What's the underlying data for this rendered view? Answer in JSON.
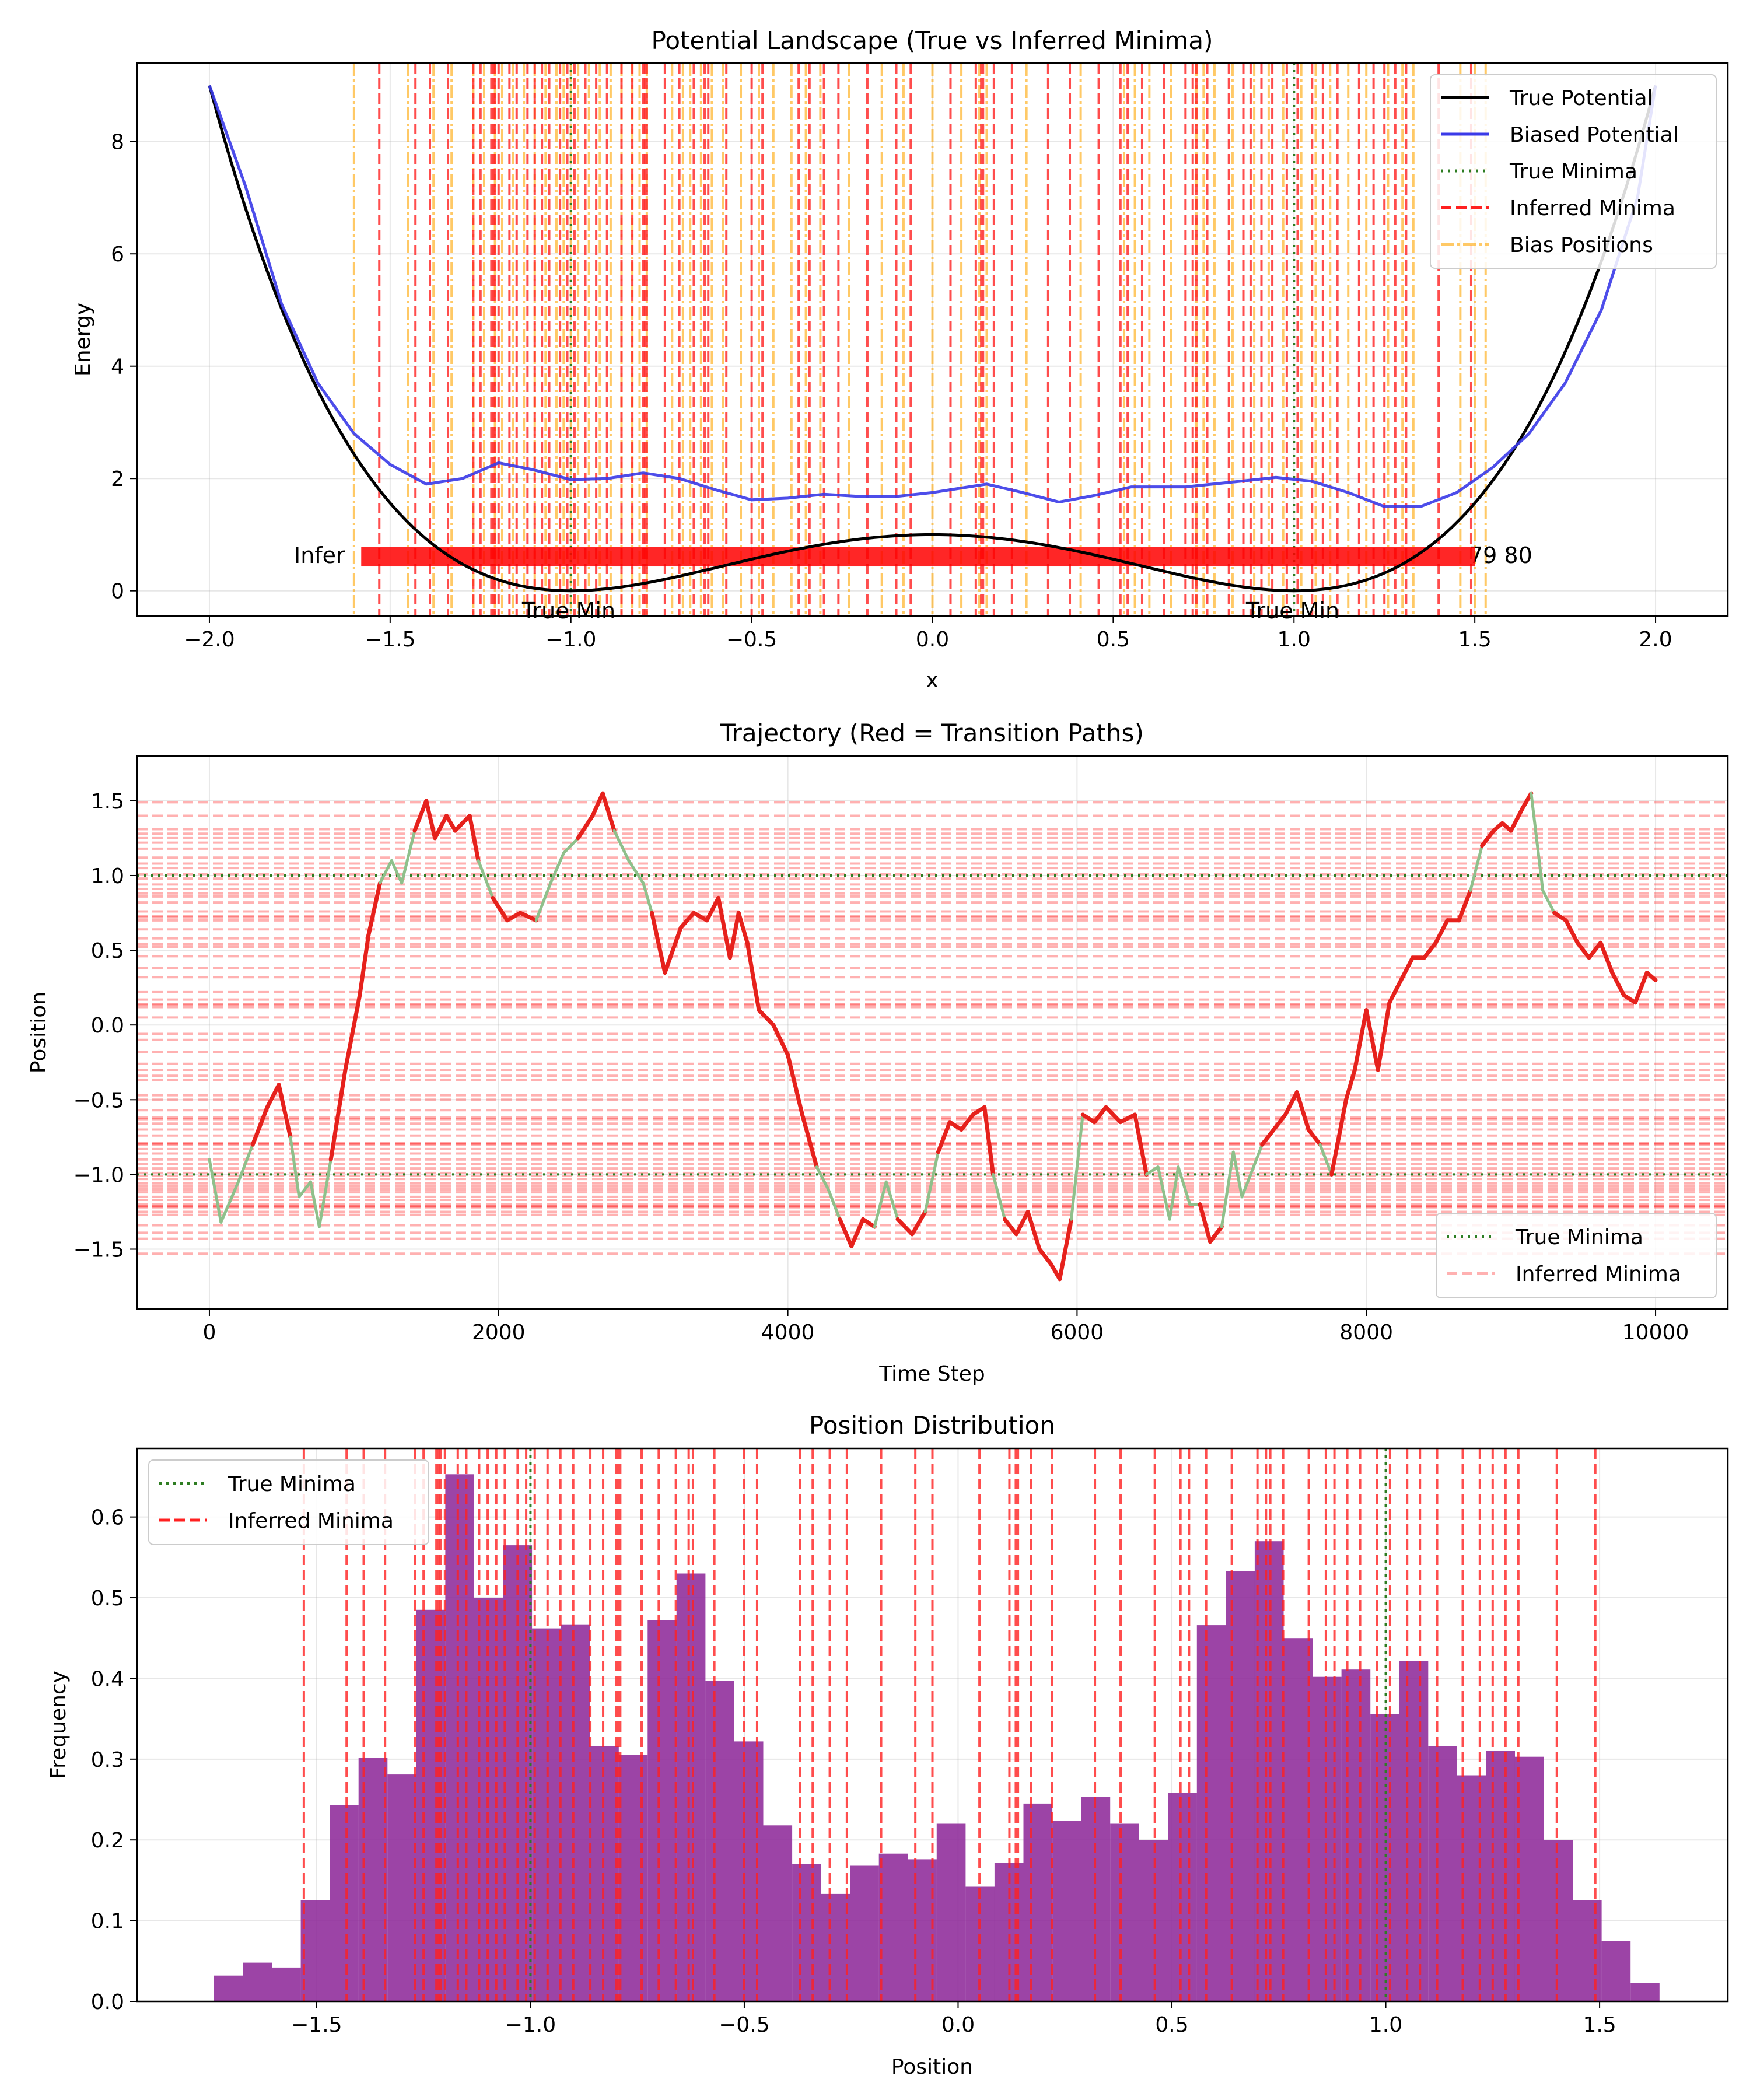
{
  "colors": {
    "true_potential": "#000000",
    "biased_potential": "#3a3ae8",
    "true_minima": "#2e7d22",
    "inferred_minima": "#ff2020",
    "bias_positions": "#ffa500",
    "transition": "#e6211c",
    "stable": "#8fc08b",
    "histogram": "#8e2a9a",
    "annotation_red": "#ff0000",
    "annotation_green": "#1a8a1a"
  },
  "chart_data": [
    {
      "type": "line",
      "title": "Potential Landscape (True vs Inferred Minima)",
      "xlabel": "x",
      "ylabel": "Energy",
      "xlim": [
        -2.2,
        2.2
      ],
      "ylim": [
        -0.45,
        9.4
      ],
      "xticks": [
        "−2.0",
        "−1.5",
        "−1.0",
        "−0.5",
        "0.0",
        "0.5",
        "1.0",
        "1.5",
        "2.0"
      ],
      "xtick_values": [
        -2.0,
        -1.5,
        -1.0,
        -0.5,
        0.0,
        0.5,
        1.0,
        1.5,
        2.0
      ],
      "yticks": [
        "0",
        "2",
        "4",
        "6",
        "8"
      ],
      "ytick_values": [
        0,
        2,
        4,
        6,
        8
      ],
      "grid": true,
      "legend_position": "top-right",
      "legend": [
        "True Potential",
        "Biased Potential",
        "True Minima",
        "Inferred Minima",
        "Bias Positions"
      ],
      "true_potential_formula": "(x^2 - 1)^2 for x in [-2, 2]",
      "biased_potential_points": [
        [
          -2.0,
          9.0
        ],
        [
          -1.9,
          7.2
        ],
        [
          -1.8,
          5.1
        ],
        [
          -1.7,
          3.7
        ],
        [
          -1.6,
          2.8
        ],
        [
          -1.5,
          2.25
        ],
        [
          -1.4,
          1.9
        ],
        [
          -1.3,
          2.0
        ],
        [
          -1.2,
          2.28
        ],
        [
          -1.1,
          2.15
        ],
        [
          -1.0,
          1.98
        ],
        [
          -0.9,
          2.0
        ],
        [
          -0.8,
          2.1
        ],
        [
          -0.7,
          2.0
        ],
        [
          -0.6,
          1.8
        ],
        [
          -0.5,
          1.62
        ],
        [
          -0.4,
          1.65
        ],
        [
          -0.3,
          1.72
        ],
        [
          -0.2,
          1.68
        ],
        [
          -0.1,
          1.68
        ],
        [
          0.0,
          1.75
        ],
        [
          0.1,
          1.85
        ],
        [
          0.15,
          1.9
        ],
        [
          0.25,
          1.75
        ],
        [
          0.35,
          1.58
        ],
        [
          0.45,
          1.7
        ],
        [
          0.55,
          1.85
        ],
        [
          0.7,
          1.85
        ],
        [
          0.85,
          1.95
        ],
        [
          0.95,
          2.02
        ],
        [
          1.05,
          1.95
        ],
        [
          1.15,
          1.75
        ],
        [
          1.25,
          1.5
        ],
        [
          1.35,
          1.5
        ],
        [
          1.45,
          1.75
        ],
        [
          1.55,
          2.2
        ],
        [
          1.65,
          2.8
        ],
        [
          1.75,
          3.7
        ],
        [
          1.85,
          5.0
        ],
        [
          1.95,
          7.0
        ],
        [
          2.0,
          9.0
        ]
      ],
      "true_minima": [
        -1.0,
        1.0
      ],
      "annotations": {
        "true_min_label": "True Min",
        "inferred_label_start": "Infer",
        "inferred_label_end": "79 80"
      }
    },
    {
      "type": "line",
      "title": "Trajectory (Red = Transition Paths)",
      "xlabel": "Time Step",
      "ylabel": "Position",
      "xlim": [
        -500,
        10500
      ],
      "ylim": [
        -1.9,
        1.8
      ],
      "xticks": [
        "0",
        "2000",
        "4000",
        "6000",
        "8000",
        "10000"
      ],
      "xtick_values": [
        0,
        2000,
        4000,
        6000,
        8000,
        10000
      ],
      "yticks": [
        "−1.5",
        "−1.0",
        "−0.5",
        "0.0",
        "0.5",
        "1.0",
        "1.5"
      ],
      "ytick_values": [
        -1.5,
        -1.0,
        -0.5,
        0.0,
        0.5,
        1.0,
        1.5
      ],
      "grid": true,
      "legend_position": "bottom-right",
      "legend": [
        "True Minima",
        "Inferred Minima"
      ],
      "trajectory_keypoints": [
        [
          0,
          -0.9
        ],
        [
          80,
          -1.32
        ],
        [
          200,
          -1.05
        ],
        [
          300,
          -0.8
        ],
        [
          400,
          -0.55
        ],
        [
          480,
          -0.4
        ],
        [
          560,
          -0.75
        ],
        [
          620,
          -1.15
        ],
        [
          700,
          -1.05
        ],
        [
          760,
          -1.35
        ],
        [
          840,
          -0.9
        ],
        [
          940,
          -0.3
        ],
        [
          1040,
          0.2
        ],
        [
          1100,
          0.6
        ],
        [
          1180,
          0.95
        ],
        [
          1260,
          1.1
        ],
        [
          1330,
          0.95
        ],
        [
          1420,
          1.3
        ],
        [
          1500,
          1.5
        ],
        [
          1560,
          1.25
        ],
        [
          1640,
          1.4
        ],
        [
          1700,
          1.3
        ],
        [
          1800,
          1.4
        ],
        [
          1860,
          1.1
        ],
        [
          1960,
          0.85
        ],
        [
          2060,
          0.7
        ],
        [
          2150,
          0.75
        ],
        [
          2260,
          0.7
        ],
        [
          2360,
          0.95
        ],
        [
          2450,
          1.15
        ],
        [
          2550,
          1.25
        ],
        [
          2650,
          1.4
        ],
        [
          2720,
          1.55
        ],
        [
          2800,
          1.3
        ],
        [
          2900,
          1.1
        ],
        [
          3000,
          0.95
        ],
        [
          3060,
          0.75
        ],
        [
          3150,
          0.35
        ],
        [
          3260,
          0.65
        ],
        [
          3350,
          0.75
        ],
        [
          3440,
          0.7
        ],
        [
          3520,
          0.85
        ],
        [
          3600,
          0.45
        ],
        [
          3660,
          0.75
        ],
        [
          3720,
          0.55
        ],
        [
          3800,
          0.1
        ],
        [
          3900,
          0.0
        ],
        [
          4000,
          -0.2
        ],
        [
          4100,
          -0.6
        ],
        [
          4200,
          -0.95
        ],
        [
          4280,
          -1.1
        ],
        [
          4360,
          -1.3
        ],
        [
          4440,
          -1.48
        ],
        [
          4520,
          -1.3
        ],
        [
          4600,
          -1.35
        ],
        [
          4680,
          -1.05
        ],
        [
          4760,
          -1.3
        ],
        [
          4860,
          -1.4
        ],
        [
          4950,
          -1.25
        ],
        [
          5040,
          -0.85
        ],
        [
          5120,
          -0.65
        ],
        [
          5200,
          -0.7
        ],
        [
          5280,
          -0.6
        ],
        [
          5360,
          -0.55
        ],
        [
          5420,
          -1.0
        ],
        [
          5500,
          -1.3
        ],
        [
          5580,
          -1.4
        ],
        [
          5660,
          -1.25
        ],
        [
          5740,
          -1.5
        ],
        [
          5820,
          -1.6
        ],
        [
          5880,
          -1.7
        ],
        [
          5960,
          -1.3
        ],
        [
          6040,
          -0.6
        ],
        [
          6120,
          -0.65
        ],
        [
          6200,
          -0.55
        ],
        [
          6300,
          -0.65
        ],
        [
          6400,
          -0.6
        ],
        [
          6480,
          -1.0
        ],
        [
          6560,
          -0.95
        ],
        [
          6640,
          -1.3
        ],
        [
          6700,
          -0.95
        ],
        [
          6780,
          -1.2
        ],
        [
          6850,
          -1.2
        ],
        [
          6920,
          -1.45
        ],
        [
          7000,
          -1.35
        ],
        [
          7080,
          -0.85
        ],
        [
          7140,
          -1.15
        ],
        [
          7200,
          -1.0
        ],
        [
          7280,
          -0.8
        ],
        [
          7360,
          -0.7
        ],
        [
          7440,
          -0.6
        ],
        [
          7520,
          -0.45
        ],
        [
          7600,
          -0.7
        ],
        [
          7680,
          -0.8
        ],
        [
          7760,
          -1.0
        ],
        [
          7860,
          -0.5
        ],
        [
          7920,
          -0.3
        ],
        [
          8000,
          0.1
        ],
        [
          8080,
          -0.3
        ],
        [
          8160,
          0.15
        ],
        [
          8240,
          0.3
        ],
        [
          8320,
          0.45
        ],
        [
          8400,
          0.45
        ],
        [
          8480,
          0.55
        ],
        [
          8560,
          0.7
        ],
        [
          8640,
          0.7
        ],
        [
          8720,
          0.9
        ],
        [
          8800,
          1.2
        ],
        [
          8880,
          1.3
        ],
        [
          8940,
          1.35
        ],
        [
          9000,
          1.3
        ],
        [
          9080,
          1.45
        ],
        [
          9140,
          1.55
        ],
        [
          9220,
          0.9
        ],
        [
          9300,
          0.75
        ],
        [
          9380,
          0.7
        ],
        [
          9460,
          0.55
        ],
        [
          9540,
          0.45
        ],
        [
          9620,
          0.55
        ],
        [
          9700,
          0.35
        ],
        [
          9780,
          0.2
        ],
        [
          9860,
          0.15
        ],
        [
          9940,
          0.35
        ],
        [
          10000,
          0.3
        ]
      ],
      "true_minima": [
        -1.0,
        1.0
      ]
    },
    {
      "type": "bar",
      "title": "Position Distribution",
      "xlabel": "Position",
      "ylabel": "Frequency",
      "xlim": [
        -1.92,
        1.8
      ],
      "ylim": [
        0,
        0.685
      ],
      "xticks": [
        "−1.5",
        "−1.0",
        "−0.5",
        "0.0",
        "0.5",
        "1.0",
        "1.5"
      ],
      "xtick_values": [
        -1.5,
        -1.0,
        -0.5,
        0.0,
        0.5,
        1.0,
        1.5
      ],
      "yticks": [
        "0.0",
        "0.1",
        "0.2",
        "0.3",
        "0.4",
        "0.5",
        "0.6"
      ],
      "ytick_values": [
        0.0,
        0.1,
        0.2,
        0.3,
        0.4,
        0.5,
        0.6
      ],
      "grid": true,
      "legend_position": "top-left",
      "legend": [
        "True Minima",
        "Inferred Minima"
      ],
      "bin_start": -1.74,
      "bin_width": 0.0676,
      "values": [
        0.032,
        0.048,
        0.042,
        0.125,
        0.243,
        0.302,
        0.281,
        0.485,
        0.653,
        0.5,
        0.565,
        0.462,
        0.467,
        0.316,
        0.305,
        0.472,
        0.53,
        0.397,
        0.322,
        0.218,
        0.17,
        0.133,
        0.168,
        0.183,
        0.176,
        0.22,
        0.142,
        0.172,
        0.245,
        0.224,
        0.253,
        0.22,
        0.2,
        0.258,
        0.466,
        0.533,
        0.57,
        0.45,
        0.402,
        0.411,
        0.356,
        0.422,
        0.316,
        0.28,
        0.31,
        0.303,
        0.2,
        0.125,
        0.075,
        0.023
      ],
      "true_minima": [
        -1.0,
        1.0
      ]
    }
  ],
  "inferred_minima": [
    -1.53,
    -1.43,
    -1.39,
    -1.34,
    -1.27,
    -1.25,
    -1.22,
    -1.215,
    -1.21,
    -1.2,
    -1.17,
    -1.15,
    -1.12,
    -1.1,
    -1.08,
    -1.06,
    -1.03,
    -1.01,
    -0.99,
    -0.96,
    -0.93,
    -0.9,
    -0.86,
    -0.83,
    -0.8,
    -0.795,
    -0.79,
    -0.74,
    -0.7,
    -0.66,
    -0.63,
    -0.62,
    -0.57,
    -0.5,
    -0.47,
    -0.37,
    -0.34,
    -0.3,
    -0.26,
    -0.18,
    -0.1,
    -0.06,
    0.05,
    0.12,
    0.135,
    0.14,
    0.17,
    0.22,
    0.32,
    0.38,
    0.46,
    0.52,
    0.54,
    0.58,
    0.64,
    0.7,
    0.72,
    0.73,
    0.76,
    0.82,
    0.86,
    0.88,
    0.91,
    0.94,
    0.98,
    1.01,
    1.05,
    1.08,
    1.12,
    1.18,
    1.22,
    1.25,
    1.28,
    1.31,
    1.4,
    1.49
  ],
  "bias_positions": [
    -1.6,
    -1.45,
    -1.38,
    -1.33,
    -1.27,
    -1.24,
    -1.21,
    -1.19,
    -1.16,
    -1.13,
    -1.1,
    -1.07,
    -1.04,
    -1.02,
    -1.0,
    -0.98,
    -0.95,
    -0.92,
    -0.89,
    -0.86,
    -0.83,
    -0.81,
    -0.79,
    -0.72,
    -0.69,
    -0.67,
    -0.64,
    -0.61,
    -0.58,
    -0.53,
    -0.48,
    -0.44,
    -0.39,
    -0.35,
    -0.31,
    -0.23,
    -0.14,
    -0.08,
    0.0,
    0.08,
    0.13,
    0.15,
    0.26,
    0.41,
    0.53,
    0.56,
    0.6,
    0.66,
    0.73,
    0.75,
    0.78,
    0.83,
    0.89,
    0.93,
    0.97,
    1.02,
    1.06,
    1.1,
    1.15,
    1.2,
    1.26,
    1.3,
    1.33,
    1.46,
    1.5,
    1.53
  ]
}
